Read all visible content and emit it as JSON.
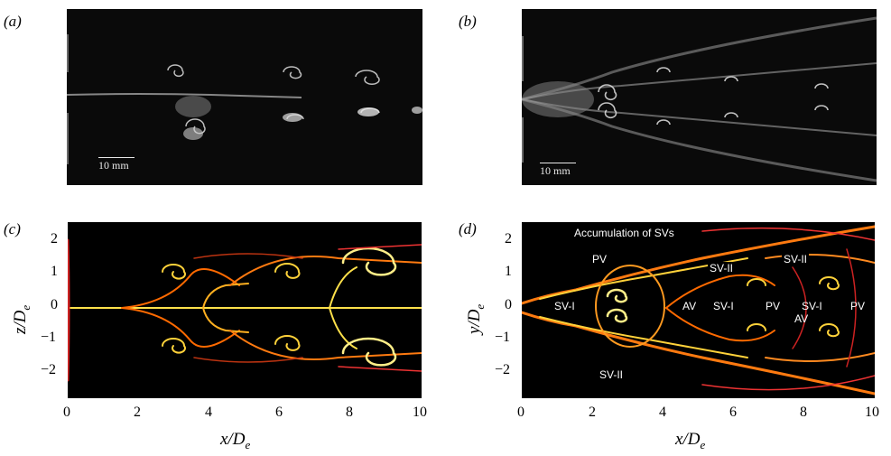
{
  "panels": {
    "a": {
      "label": "(a)",
      "scale": "10 mm"
    },
    "b": {
      "label": "(b)",
      "scale": "10 mm"
    },
    "c": {
      "label": "(c)",
      "ylabel": "z/D",
      "ylabel_sub": "e",
      "xlabel": "x/D",
      "xlabel_sub": "e",
      "yticks": [
        "2",
        "1",
        "0",
        "−1",
        "−2"
      ],
      "xticks": [
        "0",
        "2",
        "4",
        "6",
        "8",
        "10"
      ]
    },
    "d": {
      "label": "(d)",
      "ylabel": "y/D",
      "ylabel_sub": "e",
      "xlabel": "x/D",
      "xlabel_sub": "e",
      "yticks": [
        "2",
        "1",
        "0",
        "−1",
        "−2"
      ],
      "xticks": [
        "0",
        "2",
        "4",
        "6",
        "8",
        "10"
      ],
      "annotations": {
        "accumulation": "Accumulation of SVs",
        "pv_top": "PV",
        "sv_i_left": "SV-I",
        "av_left": "AV",
        "sv_ii_bottom": "SV-II",
        "sv_ii_mid": "SV-II",
        "sv_i_mid": "SV-I",
        "pv_mid": "PV",
        "av_right": "AV",
        "sv_ii_right": "SV-II",
        "sv_i_right": "SV-I",
        "pv_right": "PV"
      }
    }
  },
  "colors": {
    "photo_bg": "#0a0a0a",
    "sim_bg": "#000000",
    "flame": "#ff6a00",
    "hot": "#ffe14a"
  }
}
